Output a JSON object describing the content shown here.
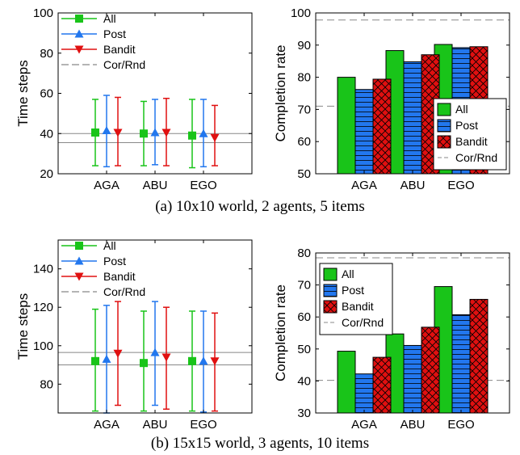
{
  "captions": {
    "a": "(a) 10x10 world, 2 agents, 5 items",
    "b": "(b) 15x15 world, 3 agents, 10 items"
  },
  "colors": {
    "all": "#19c419",
    "post": "#2277ee",
    "bandit": "#e01010",
    "ref_line": "#888888"
  },
  "chart_data": [
    {
      "id": "a-left",
      "type": "errorbar",
      "xlabel": "",
      "ylabel": "Time steps",
      "categories": [
        "AGA",
        "ABU",
        "EGO"
      ],
      "ylim": [
        20,
        100
      ],
      "yticks": [
        20,
        40,
        60,
        80,
        100
      ],
      "legend": {
        "position": "top-left",
        "entries": [
          "All",
          "Post",
          "Bandit",
          "Cor/Rnd"
        ]
      },
      "series": [
        {
          "name": "All",
          "marker": "square",
          "values": [
            40.5,
            40,
            39
          ],
          "lower": [
            24,
            24,
            23
          ],
          "upper": [
            57,
            56,
            57
          ]
        },
        {
          "name": "Post",
          "marker": "triangle-up",
          "values": [
            41.5,
            40.5,
            40
          ],
          "lower": [
            23.5,
            24.5,
            23.5
          ],
          "upper": [
            59,
            57,
            57
          ]
        },
        {
          "name": "Bandit",
          "marker": "triangle-down",
          "values": [
            40.5,
            40.5,
            38
          ],
          "lower": [
            24,
            24,
            24
          ],
          "upper": [
            58,
            57.5,
            54
          ]
        }
      ],
      "ref_lines": [
        {
          "name": "Cor/Rnd",
          "values": [
            40,
            35.5
          ]
        }
      ]
    },
    {
      "id": "a-right",
      "type": "bar",
      "xlabel": "",
      "ylabel": "Completion rate",
      "categories": [
        "AGA",
        "ABU",
        "EGO"
      ],
      "ylim": [
        50,
        100
      ],
      "yticks": [
        50,
        60,
        70,
        80,
        90,
        100
      ],
      "legend": {
        "position": "bottom-right",
        "entries": [
          "All",
          "Post",
          "Bandit",
          "Cor/Rnd"
        ]
      },
      "series": [
        {
          "name": "All",
          "pattern": "solid",
          "values": [
            80,
            88.3,
            90.2
          ]
        },
        {
          "name": "Post",
          "pattern": "hlines",
          "values": [
            76.2,
            84.8,
            89.2
          ]
        },
        {
          "name": "Bandit",
          "pattern": "crosshatch",
          "values": [
            79.4,
            87,
            89.5
          ]
        }
      ],
      "ref_lines": [
        {
          "name": "Cor/Rnd",
          "values": [
            97.8,
            71
          ]
        }
      ]
    },
    {
      "id": "b-left",
      "type": "errorbar",
      "xlabel": "",
      "ylabel": "Time steps",
      "categories": [
        "AGA",
        "ABU",
        "EGO"
      ],
      "ylim": [
        65,
        155
      ],
      "yticks": [
        80,
        100,
        120,
        140
      ],
      "legend": {
        "position": "top-left",
        "entries": [
          "All",
          "Post",
          "Bandit",
          "Cor/Rnd"
        ]
      },
      "series": [
        {
          "name": "All",
          "marker": "square",
          "values": [
            92,
            91,
            92
          ],
          "lower": [
            66,
            66,
            66
          ],
          "upper": [
            119,
            118,
            118
          ]
        },
        {
          "name": "Post",
          "marker": "triangle-up",
          "values": [
            93,
            96.5,
            92
          ],
          "lower": [
            65,
            69,
            65.5
          ],
          "upper": [
            121,
            123,
            118
          ]
        },
        {
          "name": "Bandit",
          "marker": "triangle-down",
          "values": [
            96,
            94,
            92
          ],
          "lower": [
            69,
            67,
            66
          ],
          "upper": [
            123,
            120,
            117
          ]
        }
      ],
      "ref_lines": [
        {
          "name": "Cor/Rnd",
          "values": [
            96.5,
            90
          ]
        }
      ]
    },
    {
      "id": "b-right",
      "type": "bar",
      "xlabel": "",
      "ylabel": "Completion rate",
      "categories": [
        "AGA",
        "ABU",
        "EGO"
      ],
      "ylim": [
        30,
        80
      ],
      "yticks": [
        30,
        40,
        50,
        60,
        70,
        80
      ],
      "legend": {
        "position": "top-left",
        "entries": [
          "All",
          "Post",
          "Bandit",
          "Cor/Rnd"
        ]
      },
      "series": [
        {
          "name": "All",
          "pattern": "solid",
          "values": [
            49.3,
            54.7,
            69.5
          ]
        },
        {
          "name": "Post",
          "pattern": "hlines",
          "values": [
            42.2,
            51.1,
            60.7
          ]
        },
        {
          "name": "Bandit",
          "pattern": "crosshatch",
          "values": [
            47.4,
            56.8,
            65.5
          ]
        }
      ],
      "ref_lines": [
        {
          "name": "Cor/Rnd",
          "values": [
            78.5,
            40.2
          ]
        }
      ]
    }
  ]
}
